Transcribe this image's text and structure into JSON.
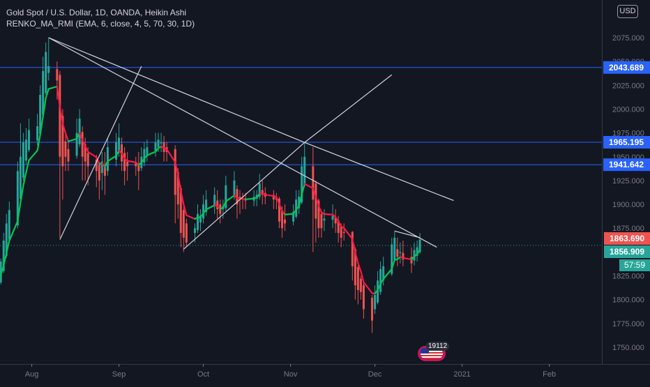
{
  "header": {
    "symbol_line": "Gold Spot / U.S. Dollar, 1D, OANDA, Heikin Ashi",
    "indicator_line": "RENKO_MA_RMI (EMA, 6, close, 4, 5, 70, 30, 1D)",
    "currency_badge": "USD"
  },
  "price_tags": {
    "last_price": "1863.690",
    "close_price": "1856.909",
    "countdown": "57:59"
  },
  "event_badge": {
    "count": "19112",
    "icon": "us-flag-icon"
  },
  "colors": {
    "background": "#131722",
    "up_candle": "#26a69a",
    "down_candle": "#ef5350",
    "ma_up": "#00c853",
    "ma_down": "#ff1744",
    "hline": "#2962ff",
    "trendline": "#d1d4dc",
    "grid_text": "#787b86"
  },
  "chart_data": {
    "type": "candlestick",
    "title": "Gold Spot / U.S. Dollar, 1D, OANDA, Heikin Ashi",
    "y_axis": {
      "range": [
        1725,
        2110
      ],
      "ticks": [
        1750,
        1775,
        1800,
        1825,
        1850,
        1875,
        1900,
        1925,
        1950,
        1975,
        2000,
        2025,
        2050,
        2075
      ],
      "tick_labels": [
        "1750.000",
        "1775.000",
        "1800.000",
        "1825.000",
        "1850.000",
        "1875.000",
        "1900.000",
        "1925.000",
        "1950.000",
        "1975.000",
        "2000.000",
        "2025.000",
        "2050.000",
        "2075.000"
      ]
    },
    "x_axis": {
      "range": [
        "2020-07-20",
        "2021-02-18"
      ],
      "ticks": [
        "2020-08-01",
        "2020-09-01",
        "2020-10-01",
        "2020-11-01",
        "2020-12-01",
        "2021-01-01",
        "2021-02-01"
      ],
      "tick_labels": [
        "Aug",
        "Sep",
        "Oct",
        "Nov",
        "Dec",
        "2021",
        "Feb"
      ]
    },
    "horizontal_levels": [
      {
        "price": 2043.689,
        "label": "2043.689"
      },
      {
        "price": 1965.195,
        "label": "1965.195"
      },
      {
        "price": 1941.642,
        "label": "1941.642"
      }
    ],
    "last_price_line": 1856.909,
    "trendlines": [
      {
        "from": [
          "2020-08-07",
          2075
        ],
        "to": [
          "2020-11-06",
          1965
        ]
      },
      {
        "from": [
          "2020-11-06",
          1965
        ],
        "to": [
          "2020-12-29",
          1904
        ]
      },
      {
        "from": [
          "2020-08-07",
          2075
        ],
        "to": [
          "2020-12-23",
          1855
        ]
      },
      {
        "from": [
          "2020-08-11",
          1863
        ],
        "to": [
          "2020-09-09",
          2045
        ]
      },
      {
        "from": [
          "2020-09-24",
          1853
        ],
        "to": [
          "2020-11-06",
          1965
        ]
      },
      {
        "from": [
          "2020-11-06",
          1965
        ],
        "to": [
          "2020-12-07",
          2036
        ]
      },
      {
        "from": [
          "2020-12-08",
          1872
        ],
        "to": [
          "2020-12-17",
          1865
        ]
      }
    ],
    "candles": [
      {
        "d": "2020-07-20",
        "o": 1815,
        "h": 1822,
        "l": 1812,
        "c": 1820
      },
      {
        "d": "2020-07-21",
        "o": 1818,
        "h": 1843,
        "l": 1816,
        "c": 1840
      },
      {
        "d": "2020-07-22",
        "o": 1830,
        "h": 1870,
        "l": 1828,
        "c": 1862
      },
      {
        "d": "2020-07-23",
        "o": 1846,
        "h": 1890,
        "l": 1844,
        "c": 1880
      },
      {
        "d": "2020-07-24",
        "o": 1863,
        "h": 1903,
        "l": 1860,
        "c": 1894
      },
      {
        "d": "2020-07-27",
        "o": 1878,
        "h": 1945,
        "l": 1875,
        "c": 1935
      },
      {
        "d": "2020-07-28",
        "o": 1906,
        "h": 1985,
        "l": 1900,
        "c": 1950
      },
      {
        "d": "2020-07-29",
        "o": 1928,
        "h": 1975,
        "l": 1925,
        "c": 1965
      },
      {
        "d": "2020-07-30",
        "o": 1946,
        "h": 1980,
        "l": 1942,
        "c": 1968
      },
      {
        "d": "2020-07-31",
        "o": 1957,
        "h": 1990,
        "l": 1955,
        "c": 1978
      },
      {
        "d": "2020-08-03",
        "o": 1967,
        "h": 1995,
        "l": 1962,
        "c": 1982
      },
      {
        "d": "2020-08-04",
        "o": 1974,
        "h": 2025,
        "l": 1970,
        "c": 2015
      },
      {
        "d": "2020-08-05",
        "o": 1994,
        "h": 2055,
        "l": 1990,
        "c": 2040
      },
      {
        "d": "2020-08-06",
        "o": 2017,
        "h": 2070,
        "l": 2015,
        "c": 2060
      },
      {
        "d": "2020-08-07",
        "o": 2038,
        "h": 2075,
        "l": 2030,
        "c": 2045
      },
      {
        "d": "2020-08-10",
        "o": 2042,
        "h": 2050,
        "l": 2010,
        "c": 2030
      },
      {
        "d": "2020-08-11",
        "o": 2036,
        "h": 2040,
        "l": 1865,
        "c": 1950
      },
      {
        "d": "2020-08-12",
        "o": 1993,
        "h": 2000,
        "l": 1905,
        "c": 1940
      },
      {
        "d": "2020-08-13",
        "o": 1966,
        "h": 1975,
        "l": 1935,
        "c": 1950
      },
      {
        "d": "2020-08-14",
        "o": 1958,
        "h": 1965,
        "l": 1935,
        "c": 1945
      },
      {
        "d": "2020-08-17",
        "o": 1951,
        "h": 1990,
        "l": 1948,
        "c": 1975
      },
      {
        "d": "2020-08-18",
        "o": 1963,
        "h": 2000,
        "l": 1960,
        "c": 1990
      },
      {
        "d": "2020-08-19",
        "o": 1976,
        "h": 1982,
        "l": 1925,
        "c": 1950
      },
      {
        "d": "2020-08-20",
        "o": 1963,
        "h": 1970,
        "l": 1925,
        "c": 1945
      },
      {
        "d": "2020-08-21",
        "o": 1954,
        "h": 1960,
        "l": 1920,
        "c": 1940
      },
      {
        "d": "2020-08-24",
        "o": 1947,
        "h": 1952,
        "l": 1918,
        "c": 1935
      },
      {
        "d": "2020-08-25",
        "o": 1941,
        "h": 1945,
        "l": 1905,
        "c": 1925
      },
      {
        "d": "2020-08-26",
        "o": 1933,
        "h": 1955,
        "l": 1915,
        "c": 1945
      },
      {
        "d": "2020-08-27",
        "o": 1939,
        "h": 1955,
        "l": 1910,
        "c": 1930
      },
      {
        "d": "2020-08-28",
        "o": 1935,
        "h": 1970,
        "l": 1930,
        "c": 1960
      },
      {
        "d": "2020-08-31",
        "o": 1947,
        "h": 1975,
        "l": 1940,
        "c": 1965
      },
      {
        "d": "2020-09-01",
        "o": 1956,
        "h": 1985,
        "l": 1950,
        "c": 1970
      },
      {
        "d": "2020-09-02",
        "o": 1963,
        "h": 1970,
        "l": 1935,
        "c": 1945
      },
      {
        "d": "2020-09-03",
        "o": 1954,
        "h": 1960,
        "l": 1920,
        "c": 1935
      },
      {
        "d": "2020-09-04",
        "o": 1945,
        "h": 1955,
        "l": 1925,
        "c": 1940
      },
      {
        "d": "2020-09-07",
        "o": 1943,
        "h": 1950,
        "l": 1930,
        "c": 1940
      },
      {
        "d": "2020-09-08",
        "o": 1941,
        "h": 1955,
        "l": 1915,
        "c": 1935
      },
      {
        "d": "2020-09-09",
        "o": 1938,
        "h": 1960,
        "l": 1935,
        "c": 1950
      },
      {
        "d": "2020-09-10",
        "o": 1944,
        "h": 1965,
        "l": 1940,
        "c": 1958
      },
      {
        "d": "2020-09-11",
        "o": 1951,
        "h": 1968,
        "l": 1945,
        "c": 1960
      },
      {
        "d": "2020-09-14",
        "o": 1956,
        "h": 1975,
        "l": 1950,
        "c": 1965
      },
      {
        "d": "2020-09-15",
        "o": 1960,
        "h": 1975,
        "l": 1955,
        "c": 1968
      },
      {
        "d": "2020-09-16",
        "o": 1964,
        "h": 1975,
        "l": 1955,
        "c": 1965
      },
      {
        "d": "2020-09-17",
        "o": 1965,
        "h": 1972,
        "l": 1945,
        "c": 1955
      },
      {
        "d": "2020-09-18",
        "o": 1960,
        "h": 1965,
        "l": 1945,
        "c": 1955
      },
      {
        "d": "2020-09-21",
        "o": 1958,
        "h": 1962,
        "l": 1880,
        "c": 1910
      },
      {
        "d": "2020-09-22",
        "o": 1934,
        "h": 1938,
        "l": 1885,
        "c": 1900
      },
      {
        "d": "2020-09-23",
        "o": 1917,
        "h": 1920,
        "l": 1855,
        "c": 1870
      },
      {
        "d": "2020-09-24",
        "o": 1894,
        "h": 1898,
        "l": 1850,
        "c": 1865
      },
      {
        "d": "2020-09-25",
        "o": 1880,
        "h": 1885,
        "l": 1855,
        "c": 1860
      },
      {
        "d": "2020-09-28",
        "o": 1870,
        "h": 1880,
        "l": 1860,
        "c": 1875
      },
      {
        "d": "2020-09-29",
        "o": 1873,
        "h": 1900,
        "l": 1870,
        "c": 1890
      },
      {
        "d": "2020-09-30",
        "o": 1881,
        "h": 1895,
        "l": 1872,
        "c": 1888
      },
      {
        "d": "2020-10-01",
        "o": 1885,
        "h": 1910,
        "l": 1880,
        "c": 1900
      },
      {
        "d": "2020-10-02",
        "o": 1892,
        "h": 1915,
        "l": 1888,
        "c": 1905
      },
      {
        "d": "2020-10-05",
        "o": 1898,
        "h": 1918,
        "l": 1890,
        "c": 1910
      },
      {
        "d": "2020-10-06",
        "o": 1904,
        "h": 1915,
        "l": 1885,
        "c": 1895
      },
      {
        "d": "2020-10-07",
        "o": 1900,
        "h": 1905,
        "l": 1880,
        "c": 1890
      },
      {
        "d": "2020-10-08",
        "o": 1895,
        "h": 1905,
        "l": 1885,
        "c": 1898
      },
      {
        "d": "2020-10-09",
        "o": 1896,
        "h": 1930,
        "l": 1893,
        "c": 1920
      },
      {
        "d": "2020-10-12",
        "o": 1908,
        "h": 1935,
        "l": 1905,
        "c": 1925
      },
      {
        "d": "2020-10-13",
        "o": 1916,
        "h": 1920,
        "l": 1885,
        "c": 1900
      },
      {
        "d": "2020-10-14",
        "o": 1908,
        "h": 1915,
        "l": 1890,
        "c": 1905
      },
      {
        "d": "2020-10-15",
        "o": 1906,
        "h": 1912,
        "l": 1895,
        "c": 1905
      },
      {
        "d": "2020-10-16",
        "o": 1905,
        "h": 1912,
        "l": 1895,
        "c": 1904
      },
      {
        "d": "2020-10-19",
        "o": 1904,
        "h": 1915,
        "l": 1898,
        "c": 1908
      },
      {
        "d": "2020-10-20",
        "o": 1906,
        "h": 1915,
        "l": 1898,
        "c": 1910
      },
      {
        "d": "2020-10-21",
        "o": 1908,
        "h": 1932,
        "l": 1905,
        "c": 1922
      },
      {
        "d": "2020-10-22",
        "o": 1915,
        "h": 1925,
        "l": 1900,
        "c": 1910
      },
      {
        "d": "2020-10-23",
        "o": 1912,
        "h": 1918,
        "l": 1900,
        "c": 1908
      },
      {
        "d": "2020-10-26",
        "o": 1910,
        "h": 1915,
        "l": 1895,
        "c": 1905
      },
      {
        "d": "2020-10-27",
        "o": 1907,
        "h": 1912,
        "l": 1895,
        "c": 1905
      },
      {
        "d": "2020-10-28",
        "o": 1906,
        "h": 1908,
        "l": 1875,
        "c": 1882
      },
      {
        "d": "2020-10-29",
        "o": 1894,
        "h": 1898,
        "l": 1865,
        "c": 1875
      },
      {
        "d": "2020-10-30",
        "o": 1884,
        "h": 1900,
        "l": 1872,
        "c": 1880
      },
      {
        "d": "2020-11-02",
        "o": 1882,
        "h": 1900,
        "l": 1878,
        "c": 1892
      },
      {
        "d": "2020-11-03",
        "o": 1887,
        "h": 1915,
        "l": 1885,
        "c": 1905
      },
      {
        "d": "2020-11-04",
        "o": 1896,
        "h": 1915,
        "l": 1890,
        "c": 1908
      },
      {
        "d": "2020-11-05",
        "o": 1902,
        "h": 1950,
        "l": 1900,
        "c": 1940
      },
      {
        "d": "2020-11-06",
        "o": 1921,
        "h": 1965,
        "l": 1918,
        "c": 1950
      },
      {
        "d": "2020-11-09",
        "o": 1940,
        "h": 1960,
        "l": 1850,
        "c": 1905
      },
      {
        "d": "2020-11-10",
        "o": 1922,
        "h": 1925,
        "l": 1860,
        "c": 1885
      },
      {
        "d": "2020-11-11",
        "o": 1904,
        "h": 1906,
        "l": 1865,
        "c": 1875
      },
      {
        "d": "2020-11-12",
        "o": 1890,
        "h": 1892,
        "l": 1865,
        "c": 1875
      },
      {
        "d": "2020-11-13",
        "o": 1883,
        "h": 1895,
        "l": 1872,
        "c": 1885
      },
      {
        "d": "2020-11-16",
        "o": 1884,
        "h": 1900,
        "l": 1875,
        "c": 1888
      },
      {
        "d": "2020-11-17",
        "o": 1886,
        "h": 1895,
        "l": 1870,
        "c": 1880
      },
      {
        "d": "2020-11-18",
        "o": 1883,
        "h": 1888,
        "l": 1860,
        "c": 1870
      },
      {
        "d": "2020-11-19",
        "o": 1877,
        "h": 1880,
        "l": 1855,
        "c": 1865
      },
      {
        "d": "2020-11-20",
        "o": 1871,
        "h": 1880,
        "l": 1862,
        "c": 1870
      },
      {
        "d": "2020-11-23",
        "o": 1871,
        "h": 1872,
        "l": 1820,
        "c": 1835
      },
      {
        "d": "2020-11-24",
        "o": 1853,
        "h": 1855,
        "l": 1800,
        "c": 1815
      },
      {
        "d": "2020-11-25",
        "o": 1834,
        "h": 1836,
        "l": 1795,
        "c": 1810
      },
      {
        "d": "2020-11-26",
        "o": 1822,
        "h": 1825,
        "l": 1800,
        "c": 1808
      },
      {
        "d": "2020-11-27",
        "o": 1815,
        "h": 1818,
        "l": 1780,
        "c": 1790
      },
      {
        "d": "2020-11-30",
        "o": 1802,
        "h": 1805,
        "l": 1765,
        "c": 1778
      },
      {
        "d": "2020-12-01",
        "o": 1790,
        "h": 1815,
        "l": 1785,
        "c": 1805
      },
      {
        "d": "2020-12-02",
        "o": 1797,
        "h": 1830,
        "l": 1795,
        "c": 1820
      },
      {
        "d": "2020-12-03",
        "o": 1808,
        "h": 1840,
        "l": 1805,
        "c": 1832
      },
      {
        "d": "2020-12-04",
        "o": 1820,
        "h": 1845,
        "l": 1815,
        "c": 1835
      },
      {
        "d": "2020-12-07",
        "o": 1827,
        "h": 1865,
        "l": 1825,
        "c": 1858
      },
      {
        "d": "2020-12-08",
        "o": 1842,
        "h": 1872,
        "l": 1840,
        "c": 1865
      },
      {
        "d": "2020-12-09",
        "o": 1853,
        "h": 1865,
        "l": 1835,
        "c": 1845
      },
      {
        "d": "2020-12-10",
        "o": 1849,
        "h": 1860,
        "l": 1838,
        "c": 1850
      },
      {
        "d": "2020-12-11",
        "o": 1849,
        "h": 1862,
        "l": 1835,
        "c": 1842
      },
      {
        "d": "2020-12-14",
        "o": 1845,
        "h": 1855,
        "l": 1828,
        "c": 1838
      },
      {
        "d": "2020-12-15",
        "o": 1841,
        "h": 1860,
        "l": 1836,
        "c": 1852
      },
      {
        "d": "2020-12-16",
        "o": 1846,
        "h": 1862,
        "l": 1840,
        "c": 1855
      },
      {
        "d": "2020-12-17",
        "o": 1850,
        "h": 1870,
        "l": 1848,
        "c": 1863
      }
    ]
  }
}
